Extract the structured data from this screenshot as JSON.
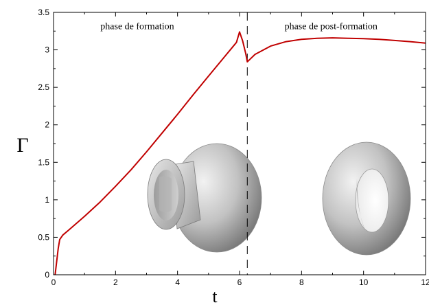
{
  "chart_data": {
    "type": "line",
    "xlabel": "t",
    "ylabel": "Γ",
    "xlim": [
      0,
      12
    ],
    "ylim": [
      0,
      3.5
    ],
    "x_ticks": [
      0,
      2,
      4,
      6,
      8,
      10,
      12
    ],
    "y_ticks": [
      0,
      0.5,
      1,
      1.5,
      2,
      2.5,
      3,
      3.5
    ],
    "x_tick_labels": [
      "0",
      "2",
      "4",
      "6",
      "8",
      "10",
      "12"
    ],
    "y_tick_labels": [
      "0",
      "0.5",
      "1",
      "1.5",
      "2",
      "2.5",
      "3",
      "3.5"
    ],
    "grid": false,
    "series": [
      {
        "color": "#c00000",
        "x": [
          0.05,
          0.15,
          0.2,
          0.3,
          0.5,
          1.0,
          1.5,
          2.0,
          2.5,
          3.0,
          3.5,
          4.0,
          4.5,
          5.0,
          5.5,
          5.9,
          6.0,
          6.1,
          6.2,
          6.25,
          6.35,
          6.5,
          7.0,
          7.5,
          8.0,
          8.5,
          9.0,
          9.5,
          10.0,
          10.5,
          11.0,
          11.5,
          12.0
        ],
        "y": [
          0.0,
          0.35,
          0.47,
          0.53,
          0.6,
          0.78,
          0.97,
          1.18,
          1.4,
          1.64,
          1.89,
          2.14,
          2.4,
          2.65,
          2.9,
          3.1,
          3.24,
          3.12,
          2.95,
          2.84,
          2.88,
          2.94,
          3.05,
          3.11,
          3.14,
          3.155,
          3.16,
          3.155,
          3.15,
          3.14,
          3.125,
          3.11,
          3.09
        ]
      }
    ],
    "vertical_line": {
      "x": 6.25,
      "style": "dashed",
      "color": "#000000"
    },
    "annotations": [
      {
        "text": "phase de formation",
        "x": 2.7,
        "y": 3.32
      },
      {
        "text": "phase de post-formation",
        "x": 8.95,
        "y": 3.32
      }
    ]
  }
}
